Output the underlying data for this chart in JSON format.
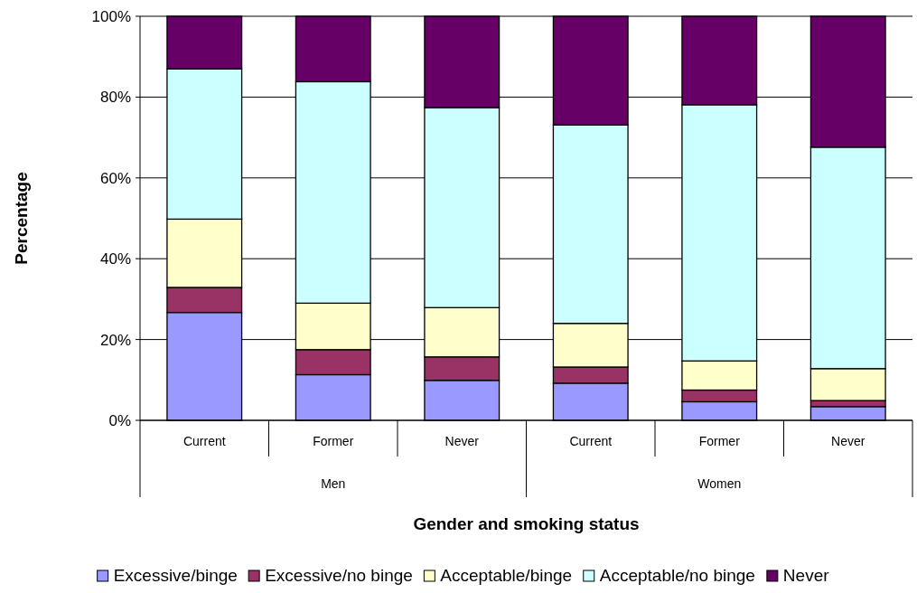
{
  "chart_data": {
    "type": "bar",
    "stacked": true,
    "xlabel": "Gender and smoking status",
    "ylabel": "Percentage",
    "categories": [
      "Current",
      "Former",
      "Never",
      "Current",
      "Former",
      "Never"
    ],
    "annotations": [
      "Men",
      "Women"
    ],
    "series": [
      {
        "name": "Excessive/binge",
        "color": "#9999ff",
        "values": [
          26.7,
          11.3,
          9.9,
          9.2,
          4.6,
          3.4
        ]
      },
      {
        "name": "Excessive/no binge",
        "color": "#993366",
        "values": [
          6.2,
          6.2,
          5.8,
          4.0,
          2.9,
          1.5
        ]
      },
      {
        "name": "Acceptable/binge",
        "color": "#ffffcc",
        "values": [
          16.9,
          11.5,
          12.2,
          10.8,
          7.2,
          7.9
        ]
      },
      {
        "name": "Acceptable/no binge",
        "color": "#ccffff",
        "values": [
          37.2,
          54.8,
          49.5,
          49.1,
          63.4,
          54.8
        ]
      },
      {
        "name": "Never",
        "color": "#660066",
        "values": [
          13.0,
          16.2,
          22.6,
          26.9,
          21.9,
          32.4
        ]
      }
    ],
    "ylim": [
      0,
      100
    ],
    "yticks": [
      {
        "value": 0,
        "label": "0%"
      },
      {
        "value": 20,
        "label": "20%"
      },
      {
        "value": 40,
        "label": "40%"
      },
      {
        "value": 60,
        "label": "60%"
      },
      {
        "value": 80,
        "label": "80%"
      },
      {
        "value": 100,
        "label": "100%"
      }
    ],
    "grid": "y",
    "legend": "bottom"
  }
}
